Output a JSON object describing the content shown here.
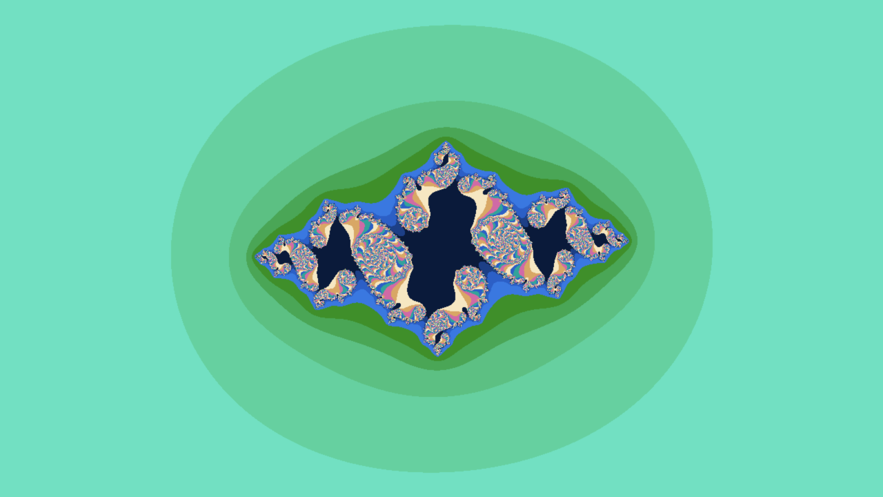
{
  "fractal": {
    "set": "julia",
    "colors": {
      "background": "#72e0c2",
      "band_outer": "#66d0a0",
      "band_mid": "#5cc083",
      "band_inner": "#4aa656",
      "band_edge": "#3f8f2a",
      "deep_blue": "#0a1a3a",
      "blue_1": "#1d3f86",
      "blue_2": "#2c5fc6",
      "blue_3": "#3a78e0",
      "highlight_cream": "#f6e7c2",
      "highlight_tan": "#d8a765",
      "highlight_pink": "#d06aa6",
      "highlight_teal": "#33a39a"
    }
  }
}
